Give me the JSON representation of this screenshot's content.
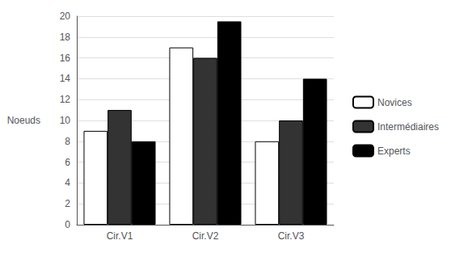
{
  "chart_data": {
    "type": "bar",
    "categories": [
      "Cir.V1",
      "Cir.V2",
      "Cir.V3"
    ],
    "series": [
      {
        "name": "Novices",
        "color": "#ffffff",
        "values": [
          9,
          17,
          8
        ]
      },
      {
        "name": "Intermédiaires",
        "color": "#333333",
        "values": [
          11,
          16,
          10
        ]
      },
      {
        "name": "Experts",
        "color": "#000000",
        "values": [
          8,
          19.5,
          14
        ]
      }
    ],
    "y_label": "Noeuds",
    "ylim": [
      0,
      20
    ],
    "yticks": [
      0,
      2,
      4,
      6,
      8,
      10,
      12,
      14,
      16,
      18,
      20
    ],
    "grid": true,
    "legend": "right"
  }
}
